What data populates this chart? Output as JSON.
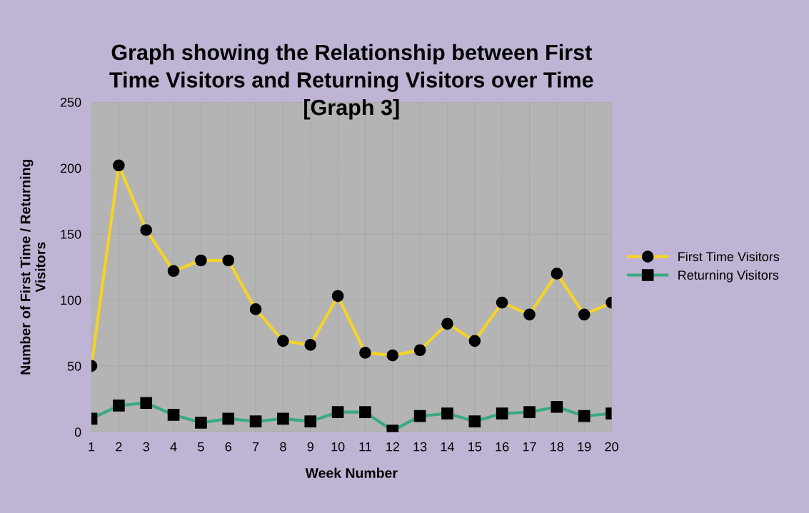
{
  "chart_data": {
    "type": "line",
    "title": "Graph showing the Relationship between First\nTime Visitors and Returning Visitors over Time\n[Graph 3]",
    "xlabel": "Week Number",
    "ylabel": "Number of First Time / Returning\nVisitors",
    "categories": [
      "1",
      "2",
      "3",
      "4",
      "5",
      "6",
      "7",
      "8",
      "9",
      "10",
      "11",
      "12",
      "13",
      "14",
      "15",
      "16",
      "17",
      "18",
      "19",
      "20"
    ],
    "series": [
      {
        "name": "First Time Visitors",
        "color": "#f5d327",
        "marker": "circle",
        "values": [
          50,
          202,
          153,
          122,
          130,
          130,
          93,
          69,
          66,
          103,
          60,
          58,
          62,
          82,
          69,
          98,
          89,
          120,
          89,
          98
        ]
      },
      {
        "name": "Returning Visitors",
        "color": "#3aaa80",
        "marker": "square",
        "values": [
          10,
          20,
          22,
          13,
          7,
          10,
          8,
          10,
          8,
          15,
          15,
          1,
          12,
          14,
          8,
          14,
          15,
          19,
          12,
          14
        ]
      }
    ],
    "ylim": [
      0,
      250
    ],
    "yticks": [
      0,
      50,
      100,
      150,
      200,
      250
    ],
    "grid": true,
    "legend": "right",
    "line_style": "solid"
  }
}
